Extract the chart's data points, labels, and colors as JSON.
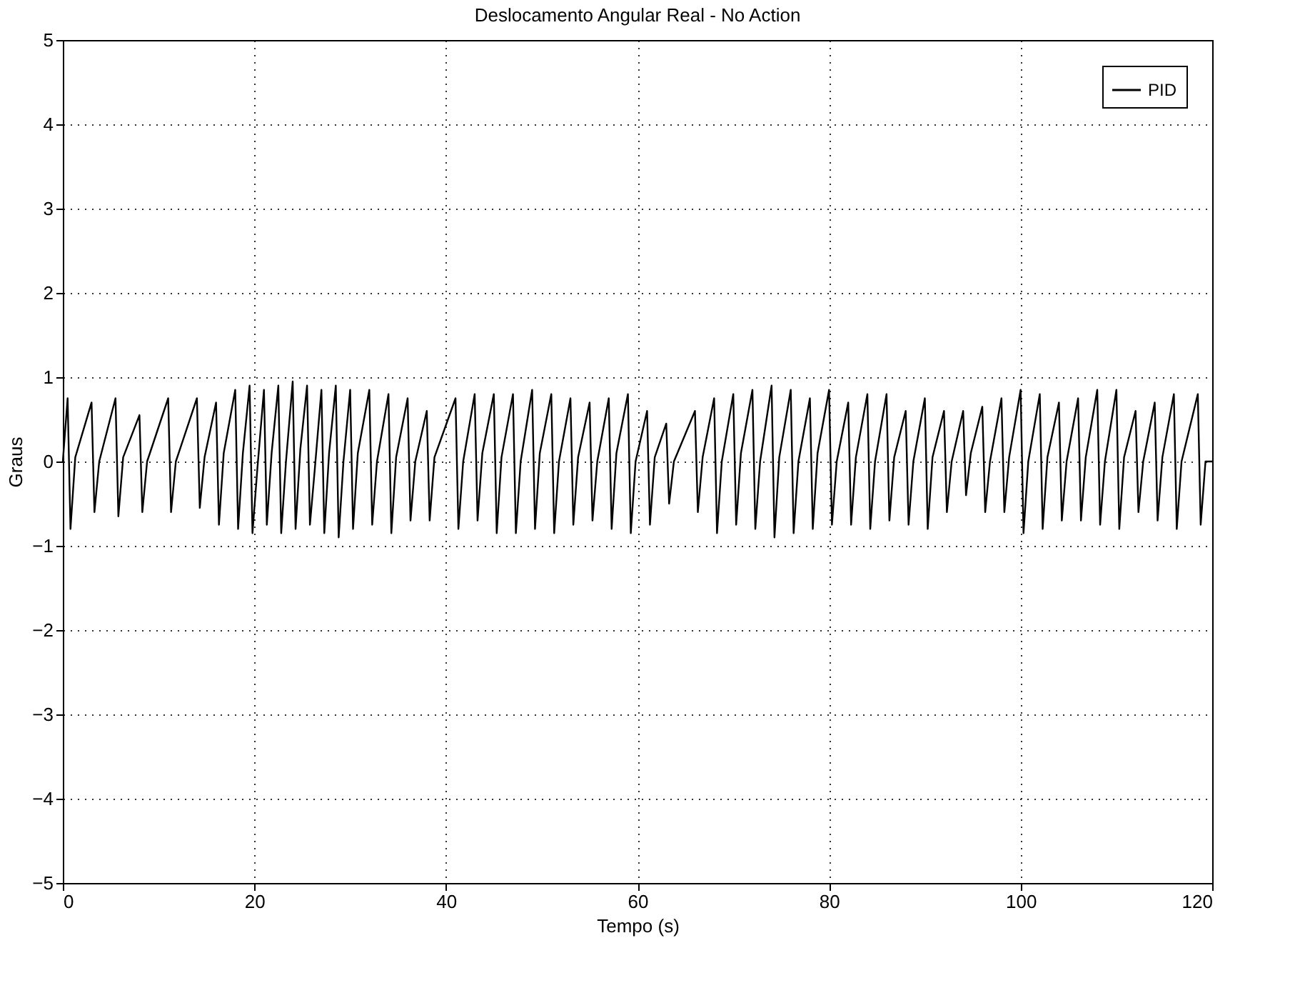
{
  "chart_data": {
    "type": "line",
    "title": "Deslocamento Angular Real - No Action",
    "xlabel": "Tempo (s)",
    "ylabel": "Graus",
    "xlim": [
      0,
      120
    ],
    "xticks": [
      0,
      20,
      40,
      60,
      80,
      100,
      120
    ],
    "ylim": [
      -5,
      5
    ],
    "yticks": [
      -5,
      -4,
      -3,
      -2,
      -1,
      0,
      1,
      2,
      3,
      4,
      5
    ],
    "grid": true,
    "legend": "top right",
    "line_style": "solid",
    "marker": "none",
    "series": [
      {
        "name": "PID",
        "color": "#000000",
        "x": [
          0,
          0.5,
          0.8,
          1.3,
          3,
          3.3,
          3.8,
          5.5,
          5.8,
          6.3,
          8,
          8.3,
          8.8,
          11,
          11.3,
          11.8,
          14,
          14.3,
          14.8,
          16,
          16.3,
          16.8,
          18,
          18.3,
          18.8,
          19.5,
          19.8,
          20.3,
          21,
          21.3,
          21.8,
          22.5,
          22.8,
          23.3,
          24,
          24.3,
          24.8,
          25.5,
          25.8,
          26.3,
          27,
          27.3,
          27.8,
          28.5,
          28.8,
          29.3,
          30,
          30.3,
          30.8,
          32,
          32.3,
          32.8,
          34,
          34.3,
          34.8,
          36,
          36.3,
          36.8,
          38,
          38.3,
          38.8,
          41,
          41.3,
          41.8,
          43,
          43.3,
          43.8,
          45,
          45.3,
          45.8,
          47,
          47.3,
          47.8,
          49,
          49.3,
          49.8,
          51,
          51.3,
          51.8,
          53,
          53.3,
          53.8,
          55,
          55.3,
          55.8,
          57,
          57.3,
          57.8,
          59,
          59.3,
          59.8,
          61,
          61.3,
          61.8,
          63,
          63.3,
          63.8,
          66,
          66.3,
          66.8,
          68,
          68.3,
          68.8,
          70,
          70.3,
          70.8,
          72,
          72.3,
          72.8,
          74,
          74.3,
          74.8,
          76,
          76.3,
          76.8,
          78,
          78.3,
          78.8,
          80,
          80.3,
          80.8,
          82,
          82.3,
          82.8,
          84,
          84.3,
          84.8,
          86,
          86.3,
          86.8,
          88,
          88.3,
          88.8,
          90,
          90.3,
          90.8,
          92,
          92.3,
          92.8,
          94,
          94.3,
          94.8,
          96,
          96.3,
          96.8,
          98,
          98.3,
          98.8,
          100,
          100.3,
          100.8,
          102,
          102.3,
          102.8,
          104,
          104.3,
          104.8,
          106,
          106.3,
          106.8,
          108,
          108.3,
          108.8,
          110,
          110.3,
          110.8,
          112,
          112.3,
          112.8,
          114,
          114.3,
          114.8,
          116,
          116.3,
          116.8,
          118.5,
          118.8,
          119.3,
          120
        ],
        "values": [
          0,
          0.75,
          -0.8,
          0.05,
          0.7,
          -0.6,
          0,
          0.75,
          -0.65,
          0.05,
          0.55,
          -0.6,
          0,
          0.75,
          -0.6,
          0,
          0.75,
          -0.55,
          0.05,
          0.7,
          -0.75,
          0.1,
          0.85,
          -0.8,
          0.1,
          0.9,
          -0.85,
          -0.1,
          0.85,
          -0.75,
          0.1,
          0.9,
          -0.85,
          0,
          0.95,
          -0.8,
          0.15,
          0.9,
          -0.75,
          -0.1,
          0.85,
          -0.85,
          0.1,
          0.9,
          -0.9,
          0,
          0.85,
          -0.8,
          0.1,
          0.85,
          -0.75,
          0,
          0.8,
          -0.85,
          0.05,
          0.75,
          -0.7,
          0,
          0.6,
          -0.7,
          0.05,
          0.75,
          -0.8,
          0,
          0.8,
          -0.7,
          0.1,
          0.8,
          -0.85,
          0.05,
          0.8,
          -0.85,
          0,
          0.85,
          -0.8,
          0.1,
          0.8,
          -0.85,
          0,
          0.75,
          -0.75,
          0.05,
          0.7,
          -0.7,
          0,
          0.75,
          -0.8,
          0.1,
          0.8,
          -0.85,
          0,
          0.6,
          -0.75,
          0.05,
          0.45,
          -0.5,
          0,
          0.6,
          -0.6,
          0.05,
          0.75,
          -0.85,
          0,
          0.8,
          -0.75,
          0.1,
          0.85,
          -0.8,
          0,
          0.9,
          -0.9,
          0.05,
          0.85,
          -0.85,
          0,
          0.75,
          -0.8,
          0.1,
          0.85,
          -0.75,
          0,
          0.7,
          -0.75,
          0.05,
          0.8,
          -0.8,
          0,
          0.8,
          -0.7,
          0.05,
          0.6,
          -0.75,
          0,
          0.75,
          -0.8,
          0.05,
          0.6,
          -0.6,
          0,
          0.6,
          -0.4,
          0.1,
          0.65,
          -0.6,
          0,
          0.75,
          -0.6,
          0.05,
          0.85,
          -0.85,
          0,
          0.8,
          -0.8,
          0.05,
          0.7,
          -0.7,
          0,
          0.75,
          -0.7,
          0.05,
          0.85,
          -0.75,
          0,
          0.85,
          -0.8,
          0.05,
          0.6,
          -0.6,
          0,
          0.7,
          -0.7,
          0.05,
          0.8,
          -0.8,
          0,
          0.8,
          -0.75,
          0,
          0
        ]
      }
    ]
  }
}
